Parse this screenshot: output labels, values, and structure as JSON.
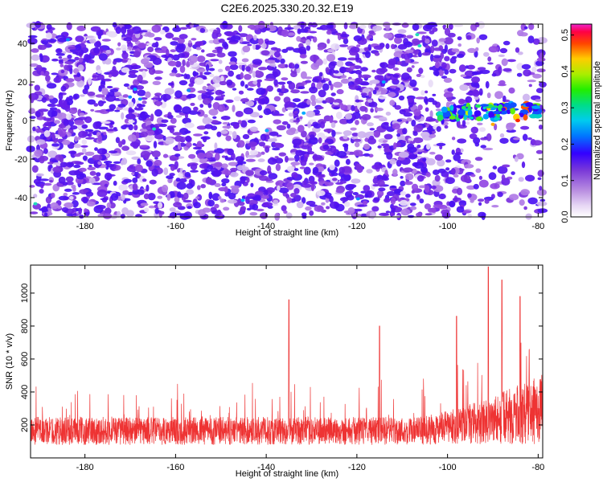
{
  "title": "C2E6.2025.330.20.32.E19",
  "chart_data": [
    {
      "type": "heatmap",
      "xlabel": "Height of straight line (km)",
      "ylabel": "Frequency (Hz)",
      "xlim": [
        -192,
        -79
      ],
      "ylim": [
        -50,
        50
      ],
      "xticks": [
        -180,
        -160,
        -140,
        -120,
        -100,
        -80
      ],
      "yticks": [
        -40,
        -20,
        0,
        20,
        40
      ],
      "colorbar": {
        "label": "Normalized spectral amplitude",
        "range": [
          0.0,
          0.53
        ],
        "ticks": [
          0.0,
          0.1,
          0.2,
          0.3,
          0.4,
          0.5
        ],
        "colormap": "rainbow (white/light purple low to magenta high)"
      },
      "features": [
        {
          "description": "noise speckle across full range",
          "amplitude_range": [
            0.0,
            0.15
          ]
        },
        {
          "description": "signal band",
          "x_range": [
            -102,
            -80
          ],
          "freq_range": [
            -5,
            10
          ],
          "peak_amplitude": 0.5
        }
      ]
    },
    {
      "type": "line",
      "xlabel": "Height of straight line (km)",
      "ylabel": "SNR (10 * v/v)",
      "xlim": [
        -192,
        -79
      ],
      "ylim": [
        0,
        1170
      ],
      "xticks": [
        -180,
        -160,
        -140,
        -120,
        -100,
        -80
      ],
      "yticks": [
        200,
        400,
        600,
        800,
        1000
      ],
      "series_color": "#ee3333",
      "baseline_range": [
        50,
        400
      ],
      "peaks": [
        {
          "x": -135,
          "y": 960
        },
        {
          "x": -115,
          "y": 800
        },
        {
          "x": -98,
          "y": 860
        },
        {
          "x": -91,
          "y": 1160
        },
        {
          "x": -88,
          "y": 1080
        },
        {
          "x": -84,
          "y": 980
        }
      ]
    }
  ]
}
